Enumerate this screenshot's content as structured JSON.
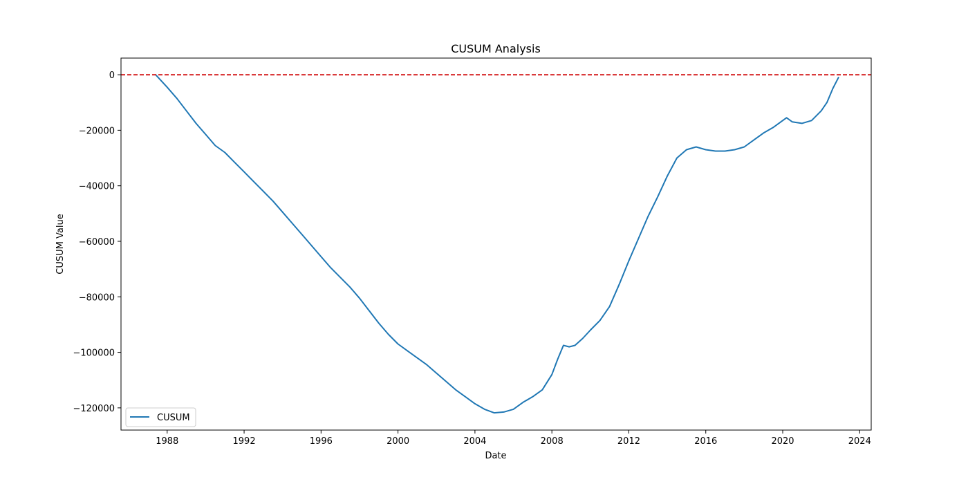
{
  "chart_data": {
    "type": "line",
    "title": "CUSUM Analysis",
    "xlabel": "Date",
    "ylabel": "CUSUM Value",
    "xlim": [
      1985.6,
      2024.6
    ],
    "ylim": [
      -128000,
      6000
    ],
    "x_ticks": [
      "1988",
      "1992",
      "1996",
      "2000",
      "2004",
      "2008",
      "2012",
      "2016",
      "2020",
      "2024"
    ],
    "y_ticks": [
      "0",
      "−20000",
      "−40000",
      "−60000",
      "−80000",
      "−100000",
      "−120000"
    ],
    "grid": false,
    "legend_placement": "lower-left",
    "reference_line": {
      "y": 0,
      "style": "dashed",
      "color": "#d62728"
    },
    "series": [
      {
        "name": "CUSUM",
        "color": "#1f77b4",
        "x": [
          1987.4,
          1988.0,
          1988.5,
          1989.0,
          1989.5,
          1990.0,
          1990.5,
          1991.0,
          1991.5,
          1992.0,
          1992.5,
          1993.0,
          1993.5,
          1994.0,
          1994.5,
          1995.0,
          1995.5,
          1996.0,
          1996.5,
          1997.0,
          1997.5,
          1998.0,
          1998.5,
          1999.0,
          1999.5,
          2000.0,
          2000.5,
          2001.0,
          2001.5,
          2002.0,
          2002.5,
          2003.0,
          2003.5,
          2004.0,
          2004.5,
          2005.0,
          2005.5,
          2006.0,
          2006.5,
          2007.0,
          2007.5,
          2008.0,
          2008.3,
          2008.6,
          2008.9,
          2009.2,
          2009.6,
          2010.0,
          2010.5,
          2011.0,
          2011.5,
          2012.0,
          2012.5,
          2013.0,
          2013.5,
          2014.0,
          2014.5,
          2015.0,
          2015.5,
          2016.0,
          2016.5,
          2017.0,
          2017.5,
          2018.0,
          2018.5,
          2019.0,
          2019.5,
          2020.0,
          2020.2,
          2020.5,
          2021.0,
          2021.5,
          2022.0,
          2022.3,
          2022.6,
          2022.9
        ],
        "values": [
          0,
          -4500,
          -8500,
          -13000,
          -17500,
          -21500,
          -25500,
          -28000,
          -31500,
          -35000,
          -38500,
          -42000,
          -45500,
          -49500,
          -53500,
          -57500,
          -61500,
          -65500,
          -69500,
          -73000,
          -76500,
          -80500,
          -85000,
          -89500,
          -93500,
          -97000,
          -99500,
          -102000,
          -104500,
          -107500,
          -110500,
          -113500,
          -116000,
          -118500,
          -120500,
          -121800,
          -121500,
          -120500,
          -118000,
          -116000,
          -113500,
          -108000,
          -102500,
          -97500,
          -98000,
          -97500,
          -95000,
          -92000,
          -88500,
          -83500,
          -75500,
          -67000,
          -59000,
          -51000,
          -44000,
          -36500,
          -30000,
          -27000,
          -26000,
          -27000,
          -27500,
          -27500,
          -27000,
          -26000,
          -23500,
          -21000,
          -19000,
          -16500,
          -15500,
          -17000,
          -17500,
          -16500,
          -13000,
          -10000,
          -5000,
          -1000
        ]
      }
    ]
  }
}
